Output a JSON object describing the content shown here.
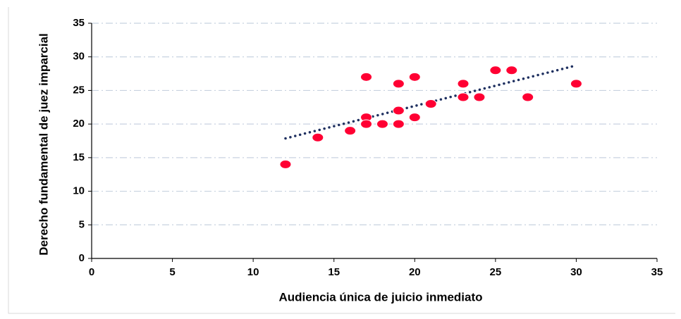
{
  "chart_data": {
    "type": "scatter",
    "x_label": "Audiencia única de juicio inmediato",
    "y_label": "Derecho fundamental de juez imparcial",
    "x": [
      12,
      14,
      16,
      17,
      17,
      17,
      18,
      19,
      19,
      19,
      20,
      20,
      21,
      23,
      23,
      24,
      25,
      26,
      27,
      30
    ],
    "values": [
      14,
      18,
      19,
      27,
      21,
      20,
      20,
      26,
      22,
      20,
      27,
      21,
      23,
      26,
      24,
      24,
      28,
      28,
      24,
      26
    ],
    "color": "#ff0033",
    "trendline": "linear",
    "trendline_color": "#1f3060",
    "xlim": [
      0,
      35
    ],
    "xticks": [
      0,
      5,
      10,
      15,
      20,
      25,
      30,
      35
    ],
    "ylim": [
      0,
      35
    ],
    "yticks": [
      0,
      5,
      10,
      15,
      20,
      25,
      30,
      35
    ],
    "grid": true
  }
}
